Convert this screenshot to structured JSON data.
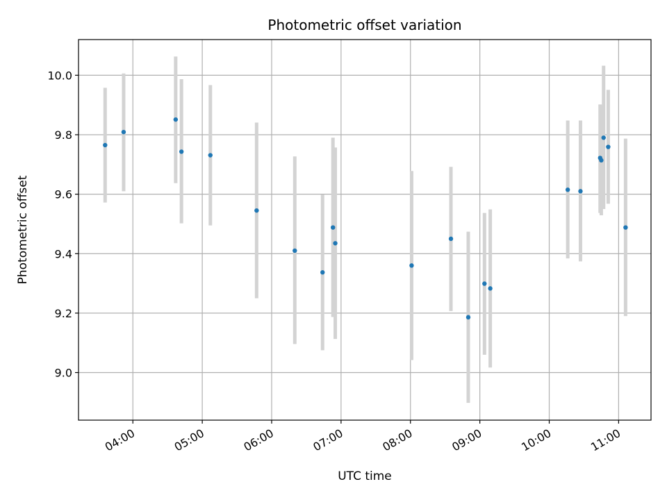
{
  "chart_data": {
    "type": "scatter",
    "title": "Photometric offset variation",
    "xlabel": "UTC time",
    "ylabel": "Photometric offset",
    "x_unit": "hours UTC",
    "xlim": [
      "03:13",
      "11:28"
    ],
    "ylim": [
      8.84,
      10.12
    ],
    "x_ticks": [
      "04:00",
      "05:00",
      "06:00",
      "07:00",
      "08:00",
      "09:00",
      "10:00",
      "11:00"
    ],
    "y_ticks": [
      "9.0",
      "9.2",
      "9.4",
      "9.6",
      "9.8",
      "10.0"
    ],
    "grid": true,
    "marker_color": "#1f77b4",
    "errorbar_color": "#d3d3d3",
    "points": [
      {
        "time": "03:36",
        "y": 9.765,
        "yerr_low": 9.572,
        "yerr_high": 9.958
      },
      {
        "time": "03:52",
        "y": 9.809,
        "yerr_low": 9.61,
        "yerr_high": 10.006
      },
      {
        "time": "04:37",
        "y": 9.851,
        "yerr_low": 9.637,
        "yerr_high": 10.063
      },
      {
        "time": "04:42",
        "y": 9.743,
        "yerr_low": 9.502,
        "yerr_high": 9.987
      },
      {
        "time": "05:07",
        "y": 9.731,
        "yerr_low": 9.495,
        "yerr_high": 9.967
      },
      {
        "time": "05:47",
        "y": 9.545,
        "yerr_low": 9.25,
        "yerr_high": 9.841
      },
      {
        "time": "06:20",
        "y": 9.41,
        "yerr_low": 9.096,
        "yerr_high": 9.727
      },
      {
        "time": "06:44",
        "y": 9.337,
        "yerr_low": 9.075,
        "yerr_high": 9.599
      },
      {
        "time": "06:53",
        "y": 9.488,
        "yerr_low": 9.187,
        "yerr_high": 9.79
      },
      {
        "time": "06:55",
        "y": 9.435,
        "yerr_low": 9.113,
        "yerr_high": 9.757
      },
      {
        "time": "08:01",
        "y": 9.36,
        "yerr_low": 9.042,
        "yerr_high": 9.678
      },
      {
        "time": "08:35",
        "y": 9.45,
        "yerr_low": 9.207,
        "yerr_high": 9.692
      },
      {
        "time": "08:50",
        "y": 9.186,
        "yerr_low": 8.898,
        "yerr_high": 9.474
      },
      {
        "time": "09:04",
        "y": 9.299,
        "yerr_low": 9.06,
        "yerr_high": 9.537
      },
      {
        "time": "09:09",
        "y": 9.283,
        "yerr_low": 9.017,
        "yerr_high": 9.549
      },
      {
        "time": "10:16",
        "y": 9.615,
        "yerr_low": 9.384,
        "yerr_high": 9.848
      },
      {
        "time": "10:27",
        "y": 9.61,
        "yerr_low": 9.374,
        "yerr_high": 9.848
      },
      {
        "time": "10:44",
        "y": 9.722,
        "yerr_low": 9.537,
        "yerr_high": 9.902
      },
      {
        "time": "10:45",
        "y": 9.714,
        "yerr_low": 9.529,
        "yerr_high": 9.898
      },
      {
        "time": "10:47",
        "y": 9.79,
        "yerr_low": 9.55,
        "yerr_high": 10.032
      },
      {
        "time": "10:51",
        "y": 9.759,
        "yerr_low": 9.568,
        "yerr_high": 9.951
      },
      {
        "time": "11:06",
        "y": 9.488,
        "yerr_low": 9.19,
        "yerr_high": 9.787
      }
    ]
  }
}
